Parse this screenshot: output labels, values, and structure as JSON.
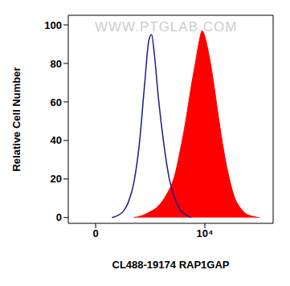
{
  "chart_data": {
    "type": "area",
    "xlabel": "CL488-19174 RAP1GAP",
    "ylabel": "Relative Cell Number",
    "watermark": "WWW.PTGLAB.COM",
    "xlim": [
      -1,
      6.5
    ],
    "xticks": [
      0,
      {
        "value": 4,
        "label": "10⁴"
      }
    ],
    "ylim": [
      -3,
      105
    ],
    "yticks": [
      0,
      20,
      40,
      60,
      80,
      100
    ],
    "series": [
      {
        "type": "area",
        "color": "#ff0000",
        "x": [
          1.4,
          1.7,
          2.0,
          2.3,
          2.6,
          2.9,
          3.1,
          3.3,
          3.5,
          3.65,
          3.8,
          3.9,
          4.0,
          4.1,
          4.3,
          4.5,
          4.7,
          4.9,
          5.1,
          5.3,
          5.5,
          5.8,
          6.0
        ],
        "values": [
          0,
          1,
          3,
          6,
          12,
          22,
          35,
          50,
          68,
          80,
          92,
          97,
          94,
          88,
          72,
          52,
          34,
          20,
          10,
          5,
          2,
          0.5,
          0
        ]
      },
      {
        "type": "line",
        "color": "#1a1a8c",
        "x": [
          0.6,
          0.8,
          1.0,
          1.2,
          1.4,
          1.6,
          1.8,
          1.95,
          2.05,
          2.15,
          2.3,
          2.5,
          2.7,
          2.9,
          3.1,
          3.3,
          3.5
        ],
        "values": [
          0,
          1,
          3,
          8,
          18,
          38,
          70,
          92,
          95,
          85,
          62,
          38,
          20,
          10,
          4,
          1.5,
          0
        ]
      }
    ]
  }
}
